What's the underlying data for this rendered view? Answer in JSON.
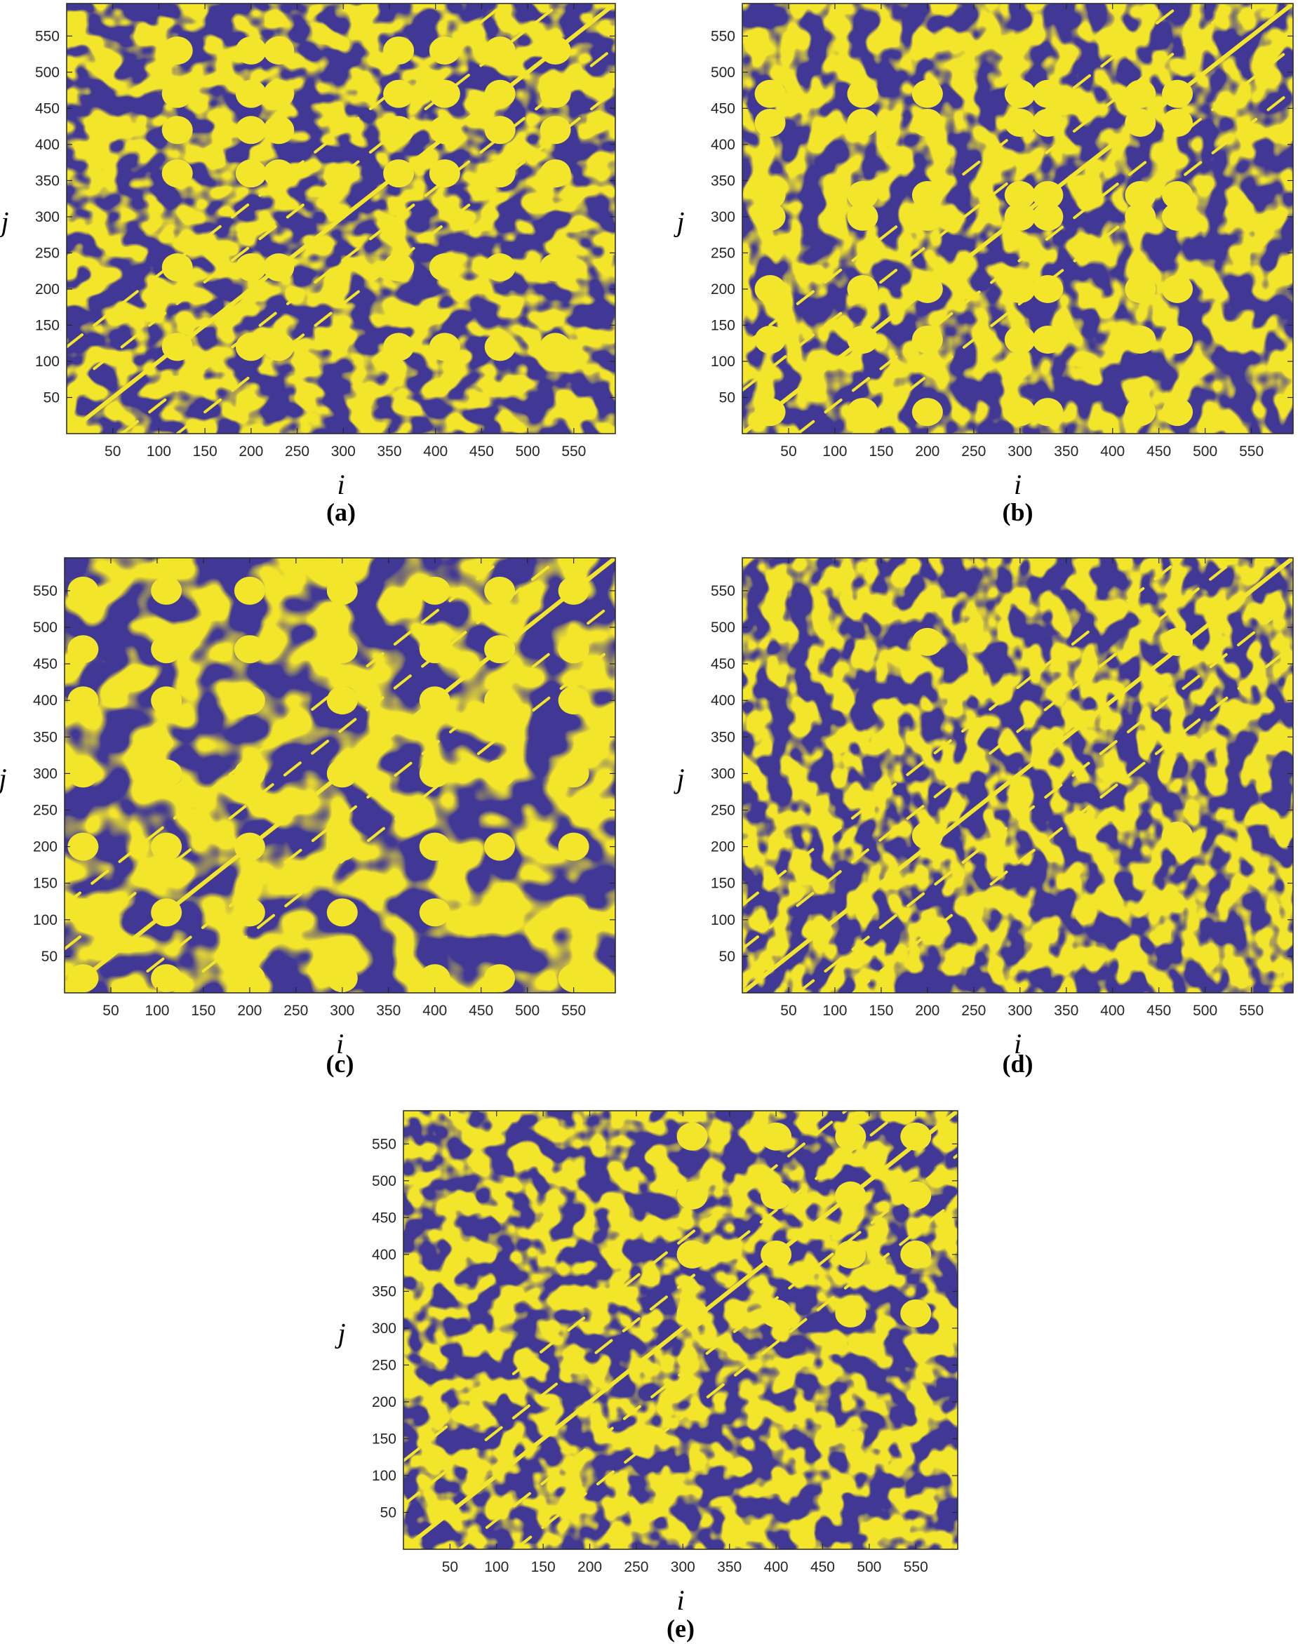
{
  "colors": {
    "background": "#413895",
    "recurrence": "#f3e52a",
    "axis": "#262626"
  },
  "chart_data": [
    {
      "id": "a",
      "panel_label": "(a)",
      "type": "heatmap",
      "description_kind": "recurrence plot (binary)",
      "xlabel": "i",
      "ylabel": "j",
      "xlim": [
        0,
        595
      ],
      "ylim": [
        0,
        595
      ],
      "xticks": [
        50,
        100,
        150,
        200,
        250,
        300,
        350,
        400,
        450,
        500,
        550
      ],
      "yticks": [
        50,
        100,
        150,
        200,
        250,
        300,
        350,
        400,
        450,
        500,
        550
      ],
      "tick_labels_x": [
        "50",
        "100",
        "150",
        "200",
        "250",
        "300",
        "350",
        "400",
        "450",
        "500",
        "550"
      ],
      "tick_labels_y": [
        "50",
        "100",
        "150",
        "200",
        "250",
        "300",
        "350",
        "400",
        "450",
        "500",
        "550"
      ],
      "blocks_x": [
        120,
        200,
        230,
        360,
        410,
        470,
        530
      ],
      "blocks_y": [
        120,
        230,
        360,
        420,
        470,
        530
      ]
    },
    {
      "id": "b",
      "panel_label": "(b)",
      "type": "heatmap",
      "description_kind": "recurrence plot (binary)",
      "xlabel": "i",
      "ylabel": "j",
      "xlim": [
        0,
        595
      ],
      "ylim": [
        0,
        595
      ],
      "xticks": [
        50,
        100,
        150,
        200,
        250,
        300,
        350,
        400,
        450,
        500,
        550
      ],
      "yticks": [
        50,
        100,
        150,
        200,
        250,
        300,
        350,
        400,
        450,
        500,
        550
      ],
      "tick_labels_x": [
        "50",
        "100",
        "150",
        "200",
        "250",
        "300",
        "350",
        "400",
        "450",
        "500",
        "550"
      ],
      "tick_labels_y": [
        "50",
        "100",
        "150",
        "200",
        "250",
        "300",
        "350",
        "400",
        "450",
        "500",
        "550"
      ],
      "blocks_x": [
        30,
        130,
        200,
        300,
        330,
        430,
        470
      ],
      "blocks_y": [
        30,
        130,
        200,
        300,
        330,
        430,
        470
      ]
    },
    {
      "id": "c",
      "panel_label": "(c)",
      "type": "heatmap",
      "description_kind": "recurrence plot (binary)",
      "xlabel": "i",
      "ylabel": "j",
      "xlim": [
        0,
        595
      ],
      "ylim": [
        0,
        595
      ],
      "xticks": [
        50,
        100,
        150,
        200,
        250,
        300,
        350,
        400,
        450,
        500,
        550
      ],
      "yticks": [
        50,
        100,
        150,
        200,
        250,
        300,
        350,
        400,
        450,
        500,
        550
      ],
      "tick_labels_x": [
        "50",
        "100",
        "150",
        "200",
        "250",
        "300",
        "350",
        "400",
        "450",
        "500",
        "550"
      ],
      "tick_labels_y": [
        "50",
        "100",
        "150",
        "200",
        "250",
        "300",
        "350",
        "400",
        "450",
        "500",
        "550"
      ],
      "blocks_x": [
        20,
        110,
        200,
        300,
        400,
        470,
        550
      ],
      "blocks_y": [
        20,
        110,
        200,
        300,
        400,
        470,
        550
      ]
    },
    {
      "id": "d",
      "panel_label": "(d)",
      "type": "heatmap",
      "description_kind": "recurrence plot (binary)",
      "xlabel": "i",
      "ylabel": "j",
      "xlim": [
        0,
        595
      ],
      "ylim": [
        0,
        595
      ],
      "xticks": [
        50,
        100,
        150,
        200,
        250,
        300,
        350,
        400,
        450,
        500,
        550
      ],
      "yticks": [
        50,
        100,
        150,
        200,
        250,
        300,
        350,
        400,
        450,
        500,
        550
      ],
      "tick_labels_x": [
        "50",
        "100",
        "150",
        "200",
        "250",
        "300",
        "350",
        "400",
        "450",
        "500",
        "550"
      ],
      "tick_labels_y": [
        "50",
        "100",
        "150",
        "200",
        "250",
        "300",
        "350",
        "400",
        "450",
        "500",
        "550"
      ],
      "blocks_x": [
        200,
        470
      ],
      "blocks_y": [
        215,
        480
      ]
    },
    {
      "id": "e",
      "panel_label": "(e)",
      "type": "heatmap",
      "description_kind": "recurrence plot (binary)",
      "xlabel": "i",
      "ylabel": "j",
      "xlim": [
        0,
        595
      ],
      "ylim": [
        0,
        595
      ],
      "xticks": [
        50,
        100,
        150,
        200,
        250,
        300,
        350,
        400,
        450,
        500,
        550
      ],
      "yticks": [
        50,
        100,
        150,
        200,
        250,
        300,
        350,
        400,
        450,
        500,
        550
      ],
      "tick_labels_x": [
        "50",
        "100",
        "150",
        "200",
        "250",
        "300",
        "350",
        "400",
        "450",
        "500",
        "550"
      ],
      "tick_labels_y": [
        "50",
        "100",
        "150",
        "200",
        "250",
        "300",
        "350",
        "400",
        "450",
        "500",
        "550"
      ],
      "blocks_x": [
        310,
        400,
        480,
        550
      ],
      "blocks_y": [
        320,
        400,
        480,
        560
      ]
    }
  ]
}
